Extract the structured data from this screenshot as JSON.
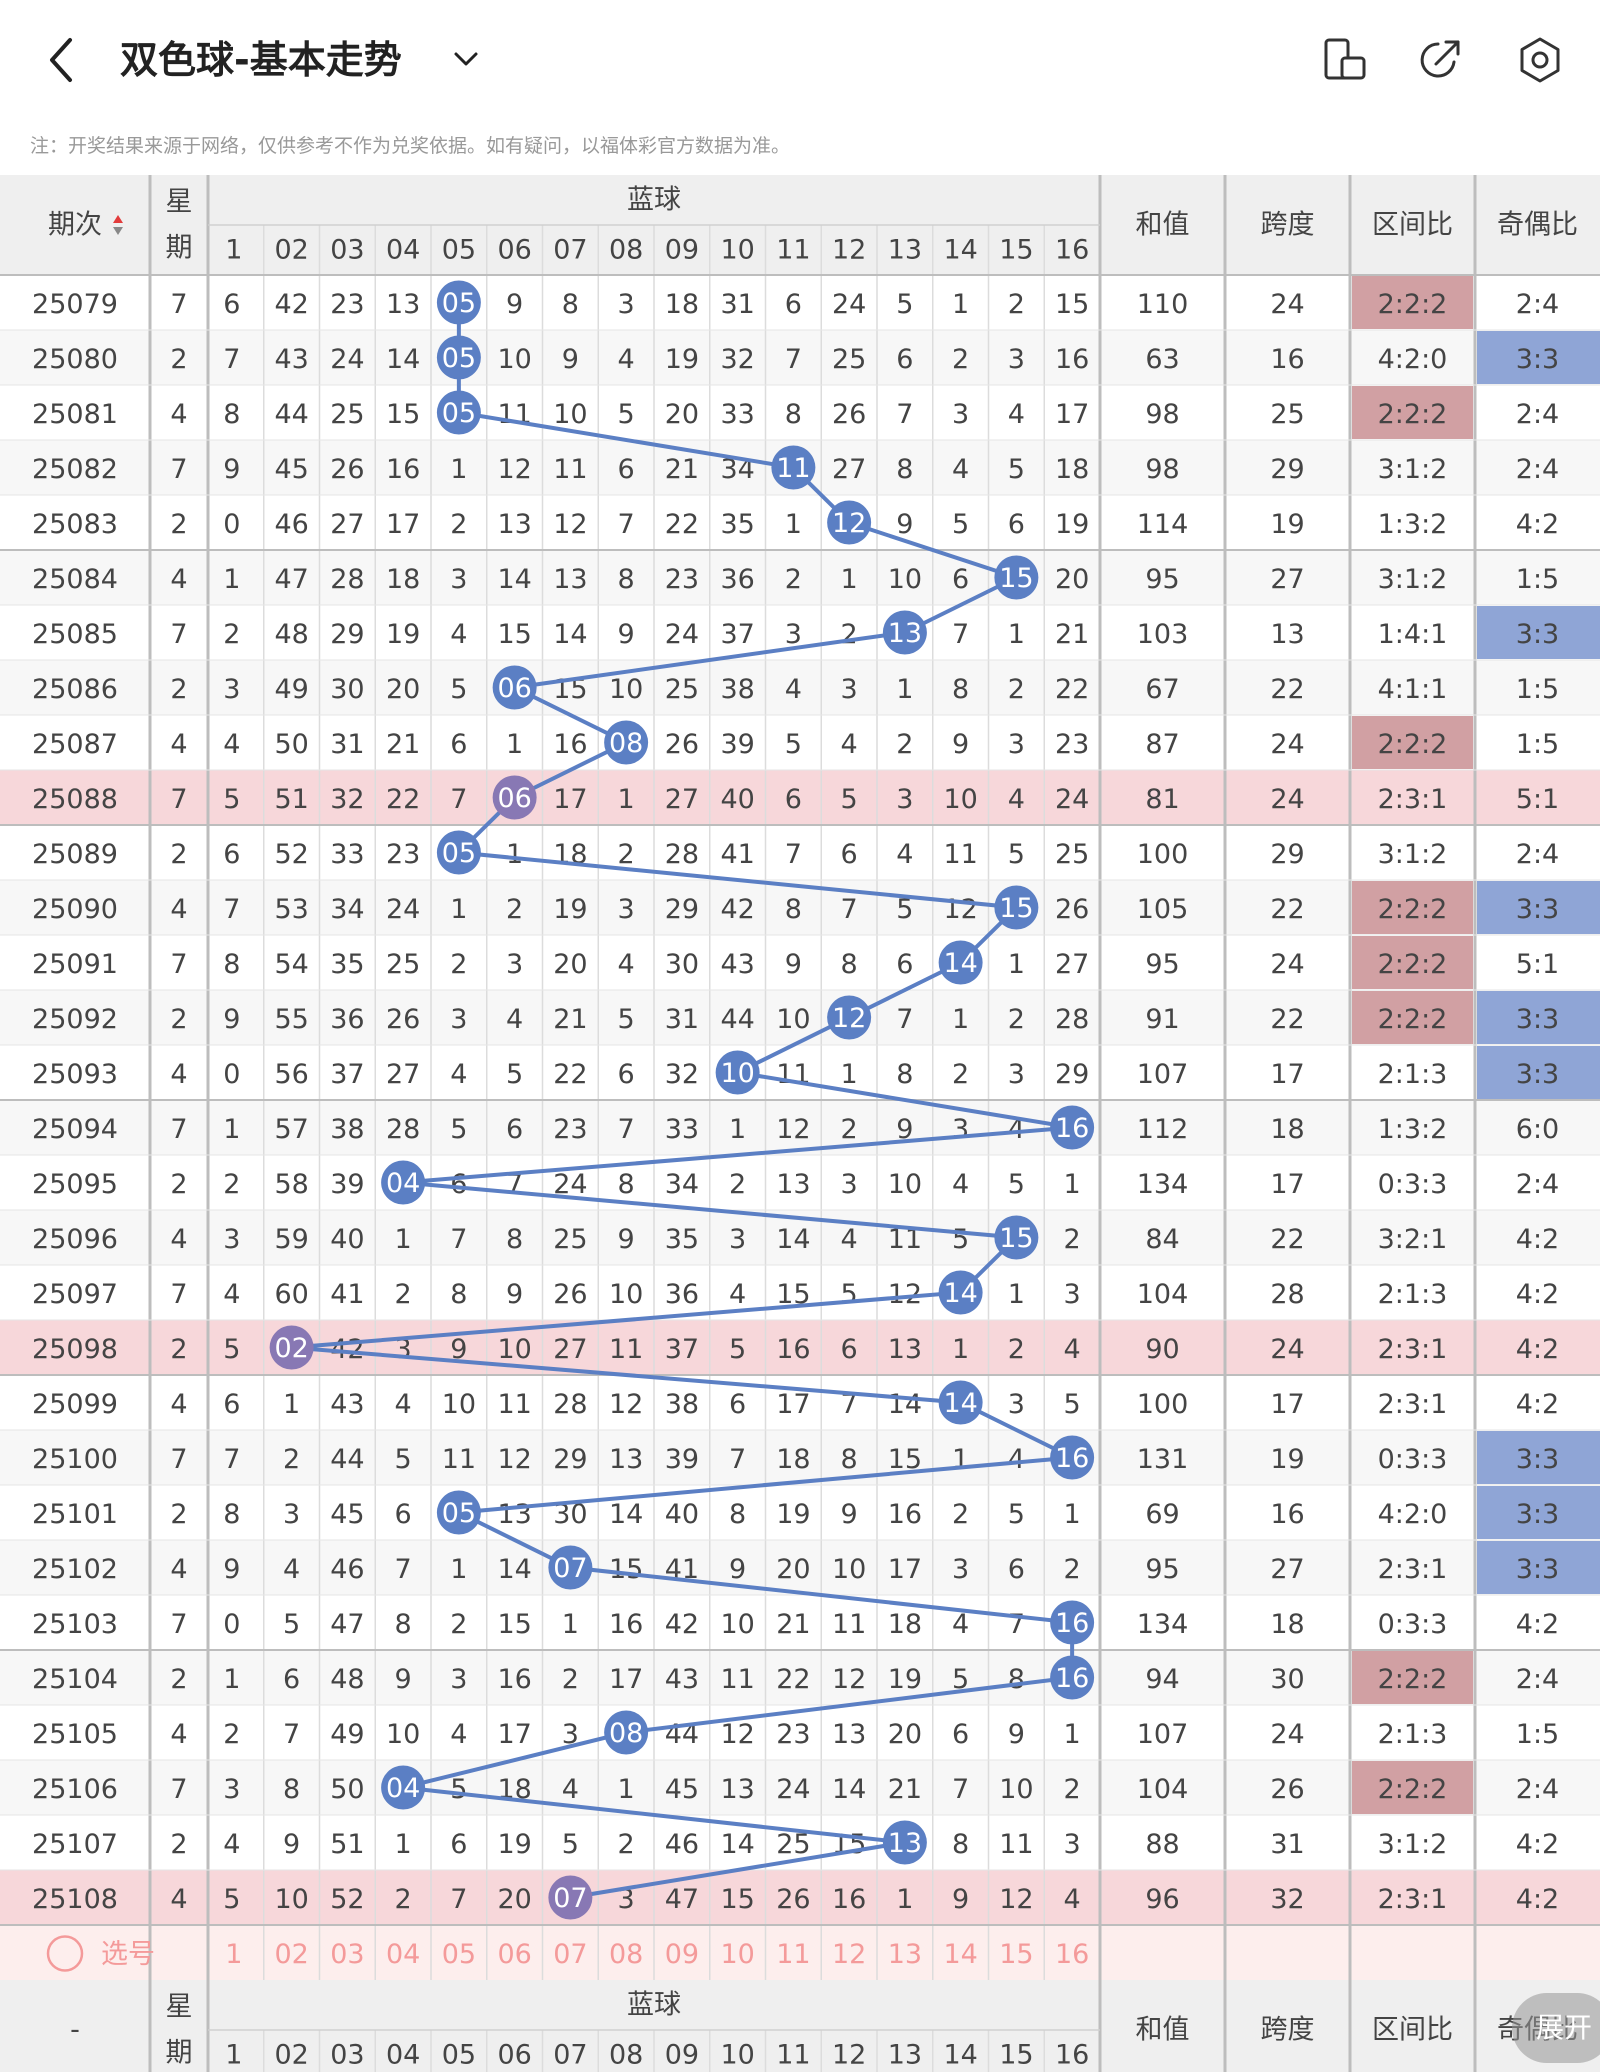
{
  "header": {
    "back_icon": "chevron-left-icon",
    "title": "双色球-基本走势",
    "caret_icon": "chevron-down-icon",
    "right_icons": [
      "phone-rotate-icon",
      "share-icon",
      "settings-icon"
    ]
  },
  "notice": "注：开奖结果来源于网络，仅供参考不作为兑奖依据。如有疑问，以福体彩官方数据为准。",
  "table": {
    "col_period": "期次",
    "col_week": [
      "星",
      "期"
    ],
    "group_blue": "蓝球",
    "col_sum": "和值",
    "col_span": "跨度",
    "col_zone": "区间比",
    "col_oddeven": "奇偶比",
    "blue_numbers": [
      "1",
      "02",
      "03",
      "04",
      "05",
      "06",
      "07",
      "08",
      "09",
      "10",
      "11",
      "12",
      "13",
      "14",
      "15",
      "16"
    ],
    "rows": [
      {
        "period": "25079",
        "week": "7",
        "cells": [
          "6",
          "42",
          "23",
          "13",
          "05",
          "9",
          "8",
          "3",
          "18",
          "31",
          "6",
          "24",
          "5",
          "1",
          "2",
          "15"
        ],
        "hit": 5,
        "sum": "110",
        "span": "24",
        "zone": "2:2:2",
        "oe": "2:4",
        "highlight": false,
        "zone_red": true,
        "oe_blue": false
      },
      {
        "period": "25080",
        "week": "2",
        "cells": [
          "7",
          "43",
          "24",
          "14",
          "05",
          "10",
          "9",
          "4",
          "19",
          "32",
          "7",
          "25",
          "6",
          "2",
          "3",
          "16"
        ],
        "hit": 5,
        "sum": "63",
        "span": "16",
        "zone": "4:2:0",
        "oe": "3:3",
        "highlight": false,
        "zone_red": false,
        "oe_blue": true
      },
      {
        "period": "25081",
        "week": "4",
        "cells": [
          "8",
          "44",
          "25",
          "15",
          "05",
          "11",
          "10",
          "5",
          "20",
          "33",
          "8",
          "26",
          "7",
          "3",
          "4",
          "17"
        ],
        "hit": 5,
        "sum": "98",
        "span": "25",
        "zone": "2:2:2",
        "oe": "2:4",
        "highlight": false,
        "zone_red": true,
        "oe_blue": false
      },
      {
        "period": "25082",
        "week": "7",
        "cells": [
          "9",
          "45",
          "26",
          "16",
          "1",
          "12",
          "11",
          "6",
          "21",
          "34",
          "11",
          "27",
          "8",
          "4",
          "5",
          "18"
        ],
        "hit": 11,
        "sum": "98",
        "span": "29",
        "zone": "3:1:2",
        "oe": "2:4",
        "highlight": false,
        "zone_red": false,
        "oe_blue": false
      },
      {
        "period": "25083",
        "week": "2",
        "cells": [
          "0",
          "46",
          "27",
          "17",
          "2",
          "13",
          "12",
          "7",
          "22",
          "35",
          "1",
          "12",
          "9",
          "5",
          "6",
          "19"
        ],
        "hit": 12,
        "sum": "114",
        "span": "19",
        "zone": "1:3:2",
        "oe": "4:2",
        "highlight": false,
        "zone_red": false,
        "oe_blue": false
      },
      {
        "period": "25084",
        "week": "4",
        "cells": [
          "1",
          "47",
          "28",
          "18",
          "3",
          "14",
          "13",
          "8",
          "23",
          "36",
          "2",
          "1",
          "10",
          "6",
          "15",
          "20"
        ],
        "hit": 15,
        "sum": "95",
        "span": "27",
        "zone": "3:1:2",
        "oe": "1:5",
        "highlight": false,
        "zone_red": false,
        "oe_blue": false
      },
      {
        "period": "25085",
        "week": "7",
        "cells": [
          "2",
          "48",
          "29",
          "19",
          "4",
          "15",
          "14",
          "9",
          "24",
          "37",
          "3",
          "2",
          "13",
          "7",
          "1",
          "21"
        ],
        "hit": 13,
        "sum": "103",
        "span": "13",
        "zone": "1:4:1",
        "oe": "3:3",
        "highlight": false,
        "zone_red": false,
        "oe_blue": true
      },
      {
        "period": "25086",
        "week": "2",
        "cells": [
          "3",
          "49",
          "30",
          "20",
          "5",
          "06",
          "15",
          "10",
          "25",
          "38",
          "4",
          "3",
          "1",
          "8",
          "2",
          "22"
        ],
        "hit": 6,
        "sum": "67",
        "span": "22",
        "zone": "4:1:1",
        "oe": "1:5",
        "highlight": false,
        "zone_red": false,
        "oe_blue": false
      },
      {
        "period": "25087",
        "week": "4",
        "cells": [
          "4",
          "50",
          "31",
          "21",
          "6",
          "1",
          "16",
          "08",
          "26",
          "39",
          "5",
          "4",
          "2",
          "9",
          "3",
          "23"
        ],
        "hit": 8,
        "sum": "87",
        "span": "24",
        "zone": "2:2:2",
        "oe": "1:5",
        "highlight": false,
        "zone_red": true,
        "oe_blue": false
      },
      {
        "period": "25088",
        "week": "7",
        "cells": [
          "5",
          "51",
          "32",
          "22",
          "7",
          "06",
          "17",
          "1",
          "27",
          "40",
          "6",
          "5",
          "3",
          "10",
          "4",
          "24"
        ],
        "hit": 6,
        "sum": "81",
        "span": "24",
        "zone": "2:3:1",
        "oe": "5:1",
        "highlight": true,
        "zone_red": false,
        "oe_blue": false
      },
      {
        "period": "25089",
        "week": "2",
        "cells": [
          "6",
          "52",
          "33",
          "23",
          "05",
          "1",
          "18",
          "2",
          "28",
          "41",
          "7",
          "6",
          "4",
          "11",
          "5",
          "25"
        ],
        "hit": 5,
        "sum": "100",
        "span": "29",
        "zone": "3:1:2",
        "oe": "2:4",
        "highlight": false,
        "zone_red": false,
        "oe_blue": false
      },
      {
        "period": "25090",
        "week": "4",
        "cells": [
          "7",
          "53",
          "34",
          "24",
          "1",
          "2",
          "19",
          "3",
          "29",
          "42",
          "8",
          "7",
          "5",
          "12",
          "15",
          "26"
        ],
        "hit": 15,
        "sum": "105",
        "span": "22",
        "zone": "2:2:2",
        "oe": "3:3",
        "highlight": false,
        "zone_red": true,
        "oe_blue": true
      },
      {
        "period": "25091",
        "week": "7",
        "cells": [
          "8",
          "54",
          "35",
          "25",
          "2",
          "3",
          "20",
          "4",
          "30",
          "43",
          "9",
          "8",
          "6",
          "14",
          "1",
          "27"
        ],
        "hit": 14,
        "sum": "95",
        "span": "24",
        "zone": "2:2:2",
        "oe": "5:1",
        "highlight": false,
        "zone_red": true,
        "oe_blue": false
      },
      {
        "period": "25092",
        "week": "2",
        "cells": [
          "9",
          "55",
          "36",
          "26",
          "3",
          "4",
          "21",
          "5",
          "31",
          "44",
          "10",
          "12",
          "7",
          "1",
          "2",
          "28"
        ],
        "hit": 12,
        "sum": "91",
        "span": "22",
        "zone": "2:2:2",
        "oe": "3:3",
        "highlight": false,
        "zone_red": true,
        "oe_blue": true
      },
      {
        "period": "25093",
        "week": "4",
        "cells": [
          "0",
          "56",
          "37",
          "27",
          "4",
          "5",
          "22",
          "6",
          "32",
          "10",
          "11",
          "1",
          "8",
          "2",
          "3",
          "29"
        ],
        "hit": 10,
        "sum": "107",
        "span": "17",
        "zone": "2:1:3",
        "oe": "3:3",
        "highlight": false,
        "zone_red": false,
        "oe_blue": true
      },
      {
        "period": "25094",
        "week": "7",
        "cells": [
          "1",
          "57",
          "38",
          "28",
          "5",
          "6",
          "23",
          "7",
          "33",
          "1",
          "12",
          "2",
          "9",
          "3",
          "4",
          "16"
        ],
        "hit": 16,
        "sum": "112",
        "span": "18",
        "zone": "1:3:2",
        "oe": "6:0",
        "highlight": false,
        "zone_red": false,
        "oe_blue": false
      },
      {
        "period": "25095",
        "week": "2",
        "cells": [
          "2",
          "58",
          "39",
          "04",
          "6",
          "7",
          "24",
          "8",
          "34",
          "2",
          "13",
          "3",
          "10",
          "4",
          "5",
          "1"
        ],
        "hit": 4,
        "sum": "134",
        "span": "17",
        "zone": "0:3:3",
        "oe": "2:4",
        "highlight": false,
        "zone_red": false,
        "oe_blue": false
      },
      {
        "period": "25096",
        "week": "4",
        "cells": [
          "3",
          "59",
          "40",
          "1",
          "7",
          "8",
          "25",
          "9",
          "35",
          "3",
          "14",
          "4",
          "11",
          "5",
          "15",
          "2"
        ],
        "hit": 15,
        "sum": "84",
        "span": "22",
        "zone": "3:2:1",
        "oe": "4:2",
        "highlight": false,
        "zone_red": false,
        "oe_blue": false
      },
      {
        "period": "25097",
        "week": "7",
        "cells": [
          "4",
          "60",
          "41",
          "2",
          "8",
          "9",
          "26",
          "10",
          "36",
          "4",
          "15",
          "5",
          "12",
          "14",
          "1",
          "3"
        ],
        "hit": 14,
        "sum": "104",
        "span": "28",
        "zone": "2:1:3",
        "oe": "4:2",
        "highlight": false,
        "zone_red": false,
        "oe_blue": false
      },
      {
        "period": "25098",
        "week": "2",
        "cells": [
          "5",
          "02",
          "42",
          "3",
          "9",
          "10",
          "27",
          "11",
          "37",
          "5",
          "16",
          "6",
          "13",
          "1",
          "2",
          "4"
        ],
        "hit": 2,
        "sum": "90",
        "span": "24",
        "zone": "2:3:1",
        "oe": "4:2",
        "highlight": true,
        "zone_red": false,
        "oe_blue": false
      },
      {
        "period": "25099",
        "week": "4",
        "cells": [
          "6",
          "1",
          "43",
          "4",
          "10",
          "11",
          "28",
          "12",
          "38",
          "6",
          "17",
          "7",
          "14",
          "14",
          "3",
          "5"
        ],
        "hit": 14,
        "sum": "100",
        "span": "17",
        "zone": "2:3:1",
        "oe": "4:2",
        "highlight": false,
        "zone_red": false,
        "oe_blue": false
      },
      {
        "period": "25100",
        "week": "7",
        "cells": [
          "7",
          "2",
          "44",
          "5",
          "11",
          "12",
          "29",
          "13",
          "39",
          "7",
          "18",
          "8",
          "15",
          "1",
          "4",
          "16"
        ],
        "hit": 16,
        "sum": "131",
        "span": "19",
        "zone": "0:3:3",
        "oe": "3:3",
        "highlight": false,
        "zone_red": false,
        "oe_blue": true
      },
      {
        "period": "25101",
        "week": "2",
        "cells": [
          "8",
          "3",
          "45",
          "6",
          "05",
          "13",
          "30",
          "14",
          "40",
          "8",
          "19",
          "9",
          "16",
          "2",
          "5",
          "1"
        ],
        "hit": 5,
        "sum": "69",
        "span": "16",
        "zone": "4:2:0",
        "oe": "3:3",
        "highlight": false,
        "zone_red": false,
        "oe_blue": true
      },
      {
        "period": "25102",
        "week": "4",
        "cells": [
          "9",
          "4",
          "46",
          "7",
          "1",
          "14",
          "07",
          "15",
          "41",
          "9",
          "20",
          "10",
          "17",
          "3",
          "6",
          "2"
        ],
        "hit": 7,
        "sum": "95",
        "span": "27",
        "zone": "2:3:1",
        "oe": "3:3",
        "highlight": false,
        "zone_red": false,
        "oe_blue": true
      },
      {
        "period": "25103",
        "week": "7",
        "cells": [
          "0",
          "5",
          "47",
          "8",
          "2",
          "15",
          "1",
          "16",
          "42",
          "10",
          "21",
          "11",
          "18",
          "4",
          "7",
          "16"
        ],
        "hit": 16,
        "sum": "134",
        "span": "18",
        "zone": "0:3:3",
        "oe": "4:2",
        "highlight": false,
        "zone_red": false,
        "oe_blue": false
      },
      {
        "period": "25104",
        "week": "2",
        "cells": [
          "1",
          "6",
          "48",
          "9",
          "3",
          "16",
          "2",
          "17",
          "43",
          "11",
          "22",
          "12",
          "19",
          "5",
          "8",
          "16"
        ],
        "hit": 16,
        "sum": "94",
        "span": "30",
        "zone": "2:2:2",
        "oe": "2:4",
        "highlight": false,
        "zone_red": true,
        "oe_blue": false
      },
      {
        "period": "25105",
        "week": "4",
        "cells": [
          "2",
          "7",
          "49",
          "10",
          "4",
          "17",
          "3",
          "08",
          "44",
          "12",
          "23",
          "13",
          "20",
          "6",
          "9",
          "1"
        ],
        "hit": 8,
        "sum": "107",
        "span": "24",
        "zone": "2:1:3",
        "oe": "1:5",
        "highlight": false,
        "zone_red": false,
        "oe_blue": false
      },
      {
        "period": "25106",
        "week": "7",
        "cells": [
          "3",
          "8",
          "50",
          "04",
          "5",
          "18",
          "4",
          "1",
          "45",
          "13",
          "24",
          "14",
          "21",
          "7",
          "10",
          "2"
        ],
        "hit": 4,
        "sum": "104",
        "span": "26",
        "zone": "2:2:2",
        "oe": "2:4",
        "highlight": false,
        "zone_red": true,
        "oe_blue": false
      },
      {
        "period": "25107",
        "week": "2",
        "cells": [
          "4",
          "9",
          "51",
          "1",
          "6",
          "19",
          "5",
          "2",
          "46",
          "14",
          "25",
          "15",
          "13",
          "8",
          "11",
          "3"
        ],
        "hit": 13,
        "sum": "88",
        "span": "31",
        "zone": "3:1:2",
        "oe": "4:2",
        "highlight": false,
        "zone_red": false,
        "oe_blue": false
      },
      {
        "period": "25108",
        "week": "4",
        "cells": [
          "5",
          "10",
          "52",
          "2",
          "7",
          "20",
          "07",
          "3",
          "47",
          "15",
          "26",
          "16",
          "1",
          "9",
          "12",
          "4"
        ],
        "hit": 7,
        "sum": "96",
        "span": "32",
        "zone": "2:3:1",
        "oe": "4:2",
        "highlight": true,
        "zone_red": false,
        "oe_blue": false
      }
    ],
    "pick_label": "选号",
    "pick_icon": "circle-outline-icon",
    "footer_period": "-"
  },
  "expand_button": "展开",
  "colors": {
    "ball_blue": "#5b7fc4",
    "ball_purple": "#8878b4",
    "row_highlight": "#f7d7da",
    "zone_red_bg": "#d1a0a3",
    "oe_blue_bg": "#8fa5d6",
    "pick_text": "#f49a9a",
    "pick_row_bg": "#fdeeed"
  }
}
